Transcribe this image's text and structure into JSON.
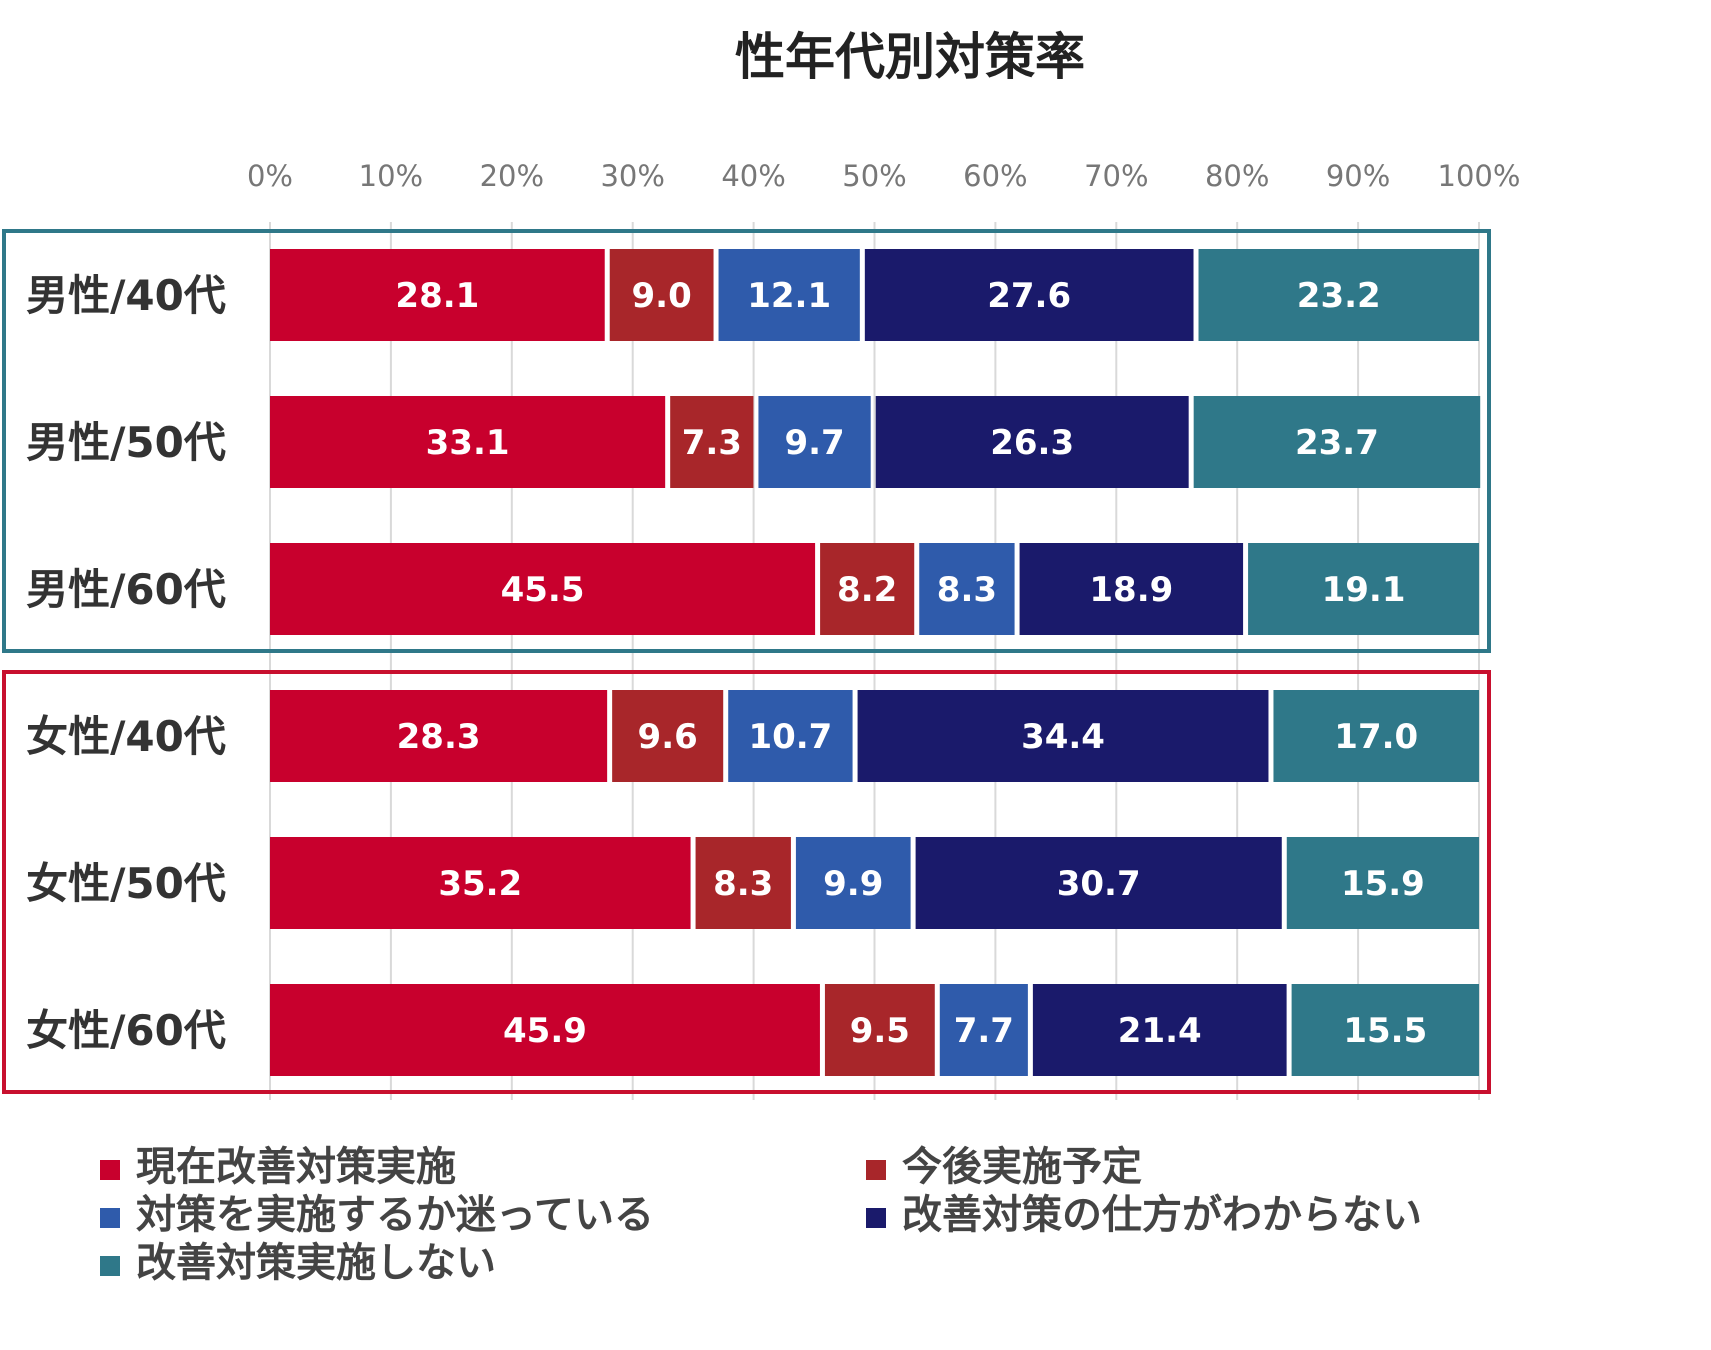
{
  "chart_data": {
    "type": "bar",
    "orientation": "horizontal",
    "stacked": true,
    "title": "性年代別対策率",
    "xlabel": "",
    "ylabel": "",
    "xlim": [
      0,
      100
    ],
    "ticks": [
      0,
      10,
      20,
      30,
      40,
      50,
      60,
      70,
      80,
      90,
      100
    ],
    "tick_labels": [
      "0%",
      "10%",
      "20%",
      "30%",
      "40%",
      "50%",
      "60%",
      "70%",
      "80%",
      "90%",
      "100%"
    ],
    "grid": true,
    "categories": [
      "男性/40代",
      "男性/50代",
      "男性/60代",
      "女性/40代",
      "女性/50代",
      "女性/60代"
    ],
    "groups": [
      {
        "name": "男性",
        "rows": [
          0,
          1,
          2
        ],
        "color": "#2f7889"
      },
      {
        "name": "女性",
        "rows": [
          3,
          4,
          5
        ],
        "color": "#c8102e"
      }
    ],
    "series": [
      {
        "name": "現在改善対策実施",
        "color": "#c8002d",
        "values": [
          28.1,
          33.1,
          45.5,
          28.3,
          35.2,
          45.9
        ]
      },
      {
        "name": "今後実施予定",
        "color": "#a8262a",
        "values": [
          9.0,
          7.3,
          8.2,
          9.6,
          8.3,
          9.5
        ]
      },
      {
        "name": "対策を実施するか迷っている",
        "color": "#2f5bab",
        "values": [
          12.1,
          9.7,
          8.3,
          10.7,
          9.9,
          7.7
        ]
      },
      {
        "name": "改善対策の仕方がわからない",
        "color": "#1a1a6b",
        "values": [
          27.6,
          26.3,
          18.9,
          34.4,
          30.7,
          21.4
        ]
      },
      {
        "name": "改善対策実施しない",
        "color": "#2f7889",
        "values": [
          23.2,
          23.7,
          19.1,
          17.0,
          15.9,
          15.5
        ]
      }
    ],
    "legend": "bottom"
  }
}
